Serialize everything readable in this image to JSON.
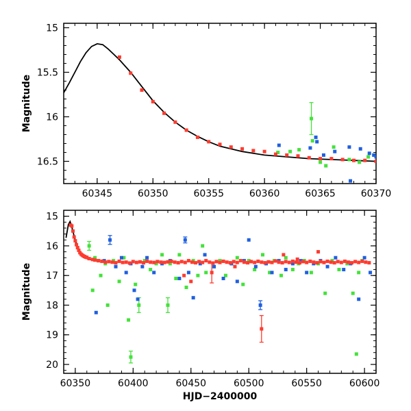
{
  "chart_data": [
    {
      "type": "scatter",
      "xlabel": "",
      "ylabel": "Magnitude",
      "xlim": [
        60342,
        60370
      ],
      "ylim": [
        16.75,
        14.95
      ],
      "y_inverted": true,
      "xticks": [
        60345,
        60350,
        60355,
        60360,
        60365,
        60370
      ],
      "xtick_labels": [
        "60345",
        "60350",
        "60355",
        "60360",
        "60365",
        "60370"
      ],
      "yticks": [
        15,
        15.5,
        16,
        16.5
      ],
      "ytick_labels": [
        "15",
        "15.5",
        "16",
        "16.5"
      ],
      "grid": false,
      "colors": {
        "red": "#ff3b2f",
        "green": "#44e23a",
        "blue": "#1f5fe0",
        "model": "#000000"
      },
      "model_curve": {
        "x": [
          60342,
          60342.5,
          60343,
          60343.5,
          60344,
          60344.5,
          60345,
          60345.5,
          60346,
          60346.5,
          60347,
          60348,
          60349,
          60350,
          60351,
          60352,
          60353,
          60354,
          60355,
          60356,
          60358,
          60360,
          60362,
          60364,
          60366,
          60368,
          60370
        ],
        "y": [
          15.73,
          15.62,
          15.5,
          15.38,
          15.28,
          15.21,
          15.18,
          15.19,
          15.24,
          15.3,
          15.36,
          15.5,
          15.66,
          15.82,
          15.95,
          16.06,
          16.15,
          16.22,
          16.28,
          16.33,
          16.39,
          16.43,
          16.45,
          16.47,
          16.48,
          16.49,
          16.5
        ]
      },
      "series": [
        {
          "color": "red",
          "x": [
            60347,
            60348,
            60349,
            60350,
            60351,
            60352,
            60353,
            60354,
            60355,
            60356,
            60357,
            60358,
            60359,
            60360,
            60361,
            60362,
            60363,
            60364,
            60365,
            60366,
            60367,
            60368,
            60369,
            60370
          ],
          "y": [
            15.33,
            15.51,
            15.7,
            15.83,
            15.96,
            16.06,
            16.15,
            16.23,
            16.28,
            16.31,
            16.34,
            16.36,
            16.38,
            16.39,
            16.42,
            16.43,
            16.44,
            16.46,
            16.47,
            16.47,
            16.48,
            16.49,
            16.49,
            16.5
          ]
        },
        {
          "color": "green",
          "x": [
            60361.2,
            60362.3,
            60363.1,
            60364.2,
            60364.3,
            60365,
            60365.5,
            60366.2,
            60367.6,
            60368.5,
            60369.3,
            60369.8
          ],
          "y": [
            16.4,
            16.39,
            16.37,
            16.02,
            16.27,
            16.51,
            16.55,
            16.34,
            16.48,
            16.51,
            16.45,
            16.43
          ],
          "error_bars": [
            0,
            0,
            0,
            0.18,
            0,
            0,
            0,
            0,
            0,
            0,
            0,
            0
          ]
        },
        {
          "color": "blue",
          "x": [
            60361.3,
            60364.1,
            60364.6,
            60364.7,
            60365.3,
            60366.3,
            60367.6,
            60367.7,
            60368.6,
            60369.4,
            60369.8,
            60370
          ],
          "y": [
            16.32,
            16.35,
            16.23,
            16.28,
            16.43,
            16.39,
            16.34,
            16.72,
            16.36,
            16.41,
            16.43,
            16.45
          ]
        }
      ]
    },
    {
      "type": "scatter",
      "xlabel": "HJD−2400000",
      "ylabel": "Magnitude",
      "xlim": [
        60340,
        60610
      ],
      "ylim": [
        20.3,
        14.8
      ],
      "y_inverted": true,
      "xticks": [
        60350,
        60400,
        60450,
        60500,
        60550,
        60600
      ],
      "xtick_labels": [
        "60350",
        "60400",
        "60450",
        "60500",
        "60550",
        "60600"
      ],
      "yticks": [
        15,
        16,
        17,
        18,
        19,
        20
      ],
      "ytick_labels": [
        "15",
        "16",
        "17",
        "18",
        "19",
        "20"
      ],
      "grid": false,
      "colors": {
        "red": "#ff3b2f",
        "green": "#44e23a",
        "blue": "#1f5fe0",
        "model": "#000000"
      },
      "model_curve": {
        "x": [
          60342,
          60344,
          60345.5,
          60347,
          60350,
          60353,
          60356,
          60360,
          60365,
          60370
        ],
        "y": [
          15.73,
          15.28,
          15.18,
          15.36,
          15.82,
          16.15,
          16.33,
          16.43,
          16.48,
          16.5
        ]
      },
      "series": [
        {
          "color": "red",
          "x": [
            60346,
            60347,
            60348,
            60349,
            60350,
            60351,
            60352,
            60353,
            60354,
            60355,
            60356,
            60357,
            60358,
            60359,
            60360,
            60362,
            60365,
            60367,
            60370,
            60373,
            60376,
            60379,
            60382,
            60385,
            60388,
            60391,
            60394,
            60397,
            60400,
            60403,
            60406,
            60409,
            60412,
            60415,
            60418,
            60421,
            60424,
            60427,
            60430,
            60433,
            60436,
            60439,
            60442,
            60445,
            60448,
            60451,
            60454,
            60457,
            60460,
            60463,
            60466,
            60469,
            60472,
            60475,
            60478,
            60481,
            60484,
            60487,
            60490,
            60493,
            60496,
            60499,
            60502,
            60505,
            60508,
            60511,
            60514,
            60517,
            60520,
            60523,
            60526,
            60529,
            60532,
            60535,
            60538,
            60541,
            60544,
            60547,
            60550,
            60553,
            60556,
            60559,
            60562,
            60565,
            60568,
            60571,
            60574,
            60577,
            60580,
            60583,
            60586,
            60589,
            60592,
            60595,
            60598,
            60601,
            60604,
            60444,
            60450,
            60468,
            60488,
            60511,
            60530,
            60542,
            60560
          ],
          "y": [
            15.3,
            15.33,
            15.5,
            15.7,
            15.83,
            15.96,
            16.06,
            16.15,
            16.23,
            16.28,
            16.31,
            16.34,
            16.36,
            16.38,
            16.39,
            16.43,
            16.46,
            16.48,
            16.5,
            16.52,
            16.55,
            16.53,
            16.55,
            16.57,
            16.52,
            16.56,
            16.55,
            16.58,
            16.53,
            16.56,
            16.54,
            16.57,
            16.52,
            16.55,
            16.56,
            16.53,
            16.55,
            16.56,
            16.54,
            16.52,
            16.55,
            16.57,
            16.53,
            16.56,
            16.5,
            16.55,
            16.57,
            16.53,
            16.56,
            16.5,
            16.55,
            16.58,
            16.53,
            16.56,
            16.52,
            16.55,
            16.57,
            16.53,
            16.56,
            16.5,
            16.55,
            16.57,
            16.53,
            16.56,
            16.52,
            16.55,
            16.57,
            16.54,
            16.56,
            16.51,
            16.55,
            16.57,
            16.53,
            16.56,
            16.52,
            16.55,
            16.57,
            16.53,
            16.56,
            16.52,
            16.55,
            16.57,
            16.53,
            16.56,
            16.52,
            16.55,
            16.57,
            16.53,
            16.56,
            16.52,
            16.55,
            16.57,
            16.53,
            16.56,
            16.52,
            16.55,
            16.57,
            17.0,
            17.2,
            16.9,
            16.7,
            18.8,
            16.3,
            16.45,
            16.2
          ],
          "error_bars": [
            0,
            0,
            0,
            0,
            0,
            0,
            0,
            0,
            0,
            0,
            0,
            0,
            0,
            0,
            0,
            0,
            0,
            0,
            0,
            0,
            0,
            0,
            0,
            0,
            0,
            0,
            0,
            0,
            0,
            0,
            0,
            0,
            0,
            0,
            0,
            0,
            0,
            0,
            0,
            0,
            0,
            0,
            0,
            0,
            0,
            0,
            0,
            0,
            0,
            0,
            0,
            0,
            0,
            0,
            0,
            0,
            0,
            0,
            0,
            0,
            0,
            0,
            0,
            0,
            0,
            0,
            0,
            0,
            0,
            0,
            0,
            0,
            0,
            0,
            0,
            0,
            0,
            0,
            0,
            0,
            0,
            0,
            0,
            0,
            0,
            0,
            0,
            0,
            0,
            0,
            0,
            0,
            0,
            0,
            0,
            0,
            0,
            0,
            0,
            0.35,
            0,
            0.45,
            0,
            0,
            0
          ]
        },
        {
          "color": "green",
          "x": [
            60362,
            60365,
            60367,
            60370,
            60372,
            60376,
            60378,
            60383,
            60388,
            60392,
            60396,
            60398,
            60402,
            60405,
            60410,
            60415,
            60420,
            60425,
            60430,
            60432,
            60437,
            60440,
            60446,
            60452,
            60456,
            60460,
            60463,
            60470,
            60475,
            60480,
            60485,
            60490,
            60495,
            60500,
            60505,
            60512,
            60518,
            60522,
            60528,
            60532,
            60538,
            60543,
            60548,
            60554,
            60560,
            60566,
            60572,
            60578,
            60585,
            60590,
            60593,
            60595,
            60598
          ],
          "y": [
            16.0,
            17.5,
            16.4,
            16.5,
            17.0,
            16.6,
            18.0,
            16.5,
            17.2,
            16.4,
            18.5,
            19.75,
            17.3,
            18.0,
            16.5,
            16.8,
            16.6,
            16.3,
            18.0,
            16.6,
            17.1,
            16.3,
            17.4,
            16.5,
            17.0,
            16.0,
            16.9,
            16.7,
            16.5,
            17.0,
            16.6,
            16.4,
            17.3,
            16.5,
            16.8,
            16.3,
            16.9,
            16.5,
            17.0,
            16.4,
            16.8,
            16.6,
            16.5,
            16.9,
            16.6,
            17.6,
            16.5,
            16.8,
            16.6,
            17.6,
            19.65,
            16.9,
            16.5
          ],
          "error_bars": [
            0.15,
            0,
            0,
            0,
            0,
            0,
            0,
            0,
            0,
            0,
            0,
            0.2,
            0,
            0.25,
            0,
            0,
            0,
            0,
            0.25,
            0,
            0,
            0,
            0,
            0,
            0,
            0,
            0,
            0,
            0,
            0,
            0,
            0,
            0,
            0,
            0,
            0,
            0,
            0,
            0,
            0,
            0,
            0,
            0,
            0,
            0,
            0,
            0,
            0,
            0,
            0,
            0,
            0,
            0
          ]
        },
        {
          "color": "blue",
          "x": [
            60368,
            60375,
            60380,
            60385,
            60390,
            60394,
            60398,
            60401,
            60404,
            60408,
            60412,
            60418,
            60425,
            60432,
            60440,
            60445,
            60448,
            60452,
            60458,
            60462,
            60470,
            60478,
            60485,
            60490,
            60496,
            60500,
            60506,
            60510,
            60515,
            60520,
            60526,
            60532,
            60538,
            60545,
            60550,
            60556,
            60562,
            60568,
            60575,
            60582,
            60588,
            60595,
            60600,
            60605
          ],
          "y": [
            18.25,
            16.5,
            15.8,
            16.7,
            16.4,
            16.9,
            16.6,
            17.5,
            17.8,
            16.7,
            16.4,
            16.9,
            16.6,
            16.5,
            17.1,
            15.8,
            16.9,
            17.75,
            16.6,
            16.3,
            16.7,
            17.1,
            16.6,
            17.2,
            16.5,
            15.8,
            16.7,
            18.0,
            16.6,
            16.9,
            16.5,
            16.8,
            16.6,
            16.5,
            16.9,
            16.6,
            16.5,
            16.7,
            16.4,
            16.8,
            16.6,
            17.8,
            16.4,
            16.9
          ],
          "error_bars": [
            0,
            0,
            0.15,
            0,
            0,
            0,
            0,
            0,
            0,
            0,
            0,
            0,
            0,
            0,
            0,
            0.1,
            0,
            0,
            0,
            0,
            0,
            0,
            0,
            0,
            0,
            0,
            0,
            0.15,
            0,
            0,
            0,
            0,
            0,
            0,
            0,
            0,
            0,
            0,
            0,
            0,
            0,
            0,
            0,
            0
          ]
        }
      ]
    }
  ]
}
